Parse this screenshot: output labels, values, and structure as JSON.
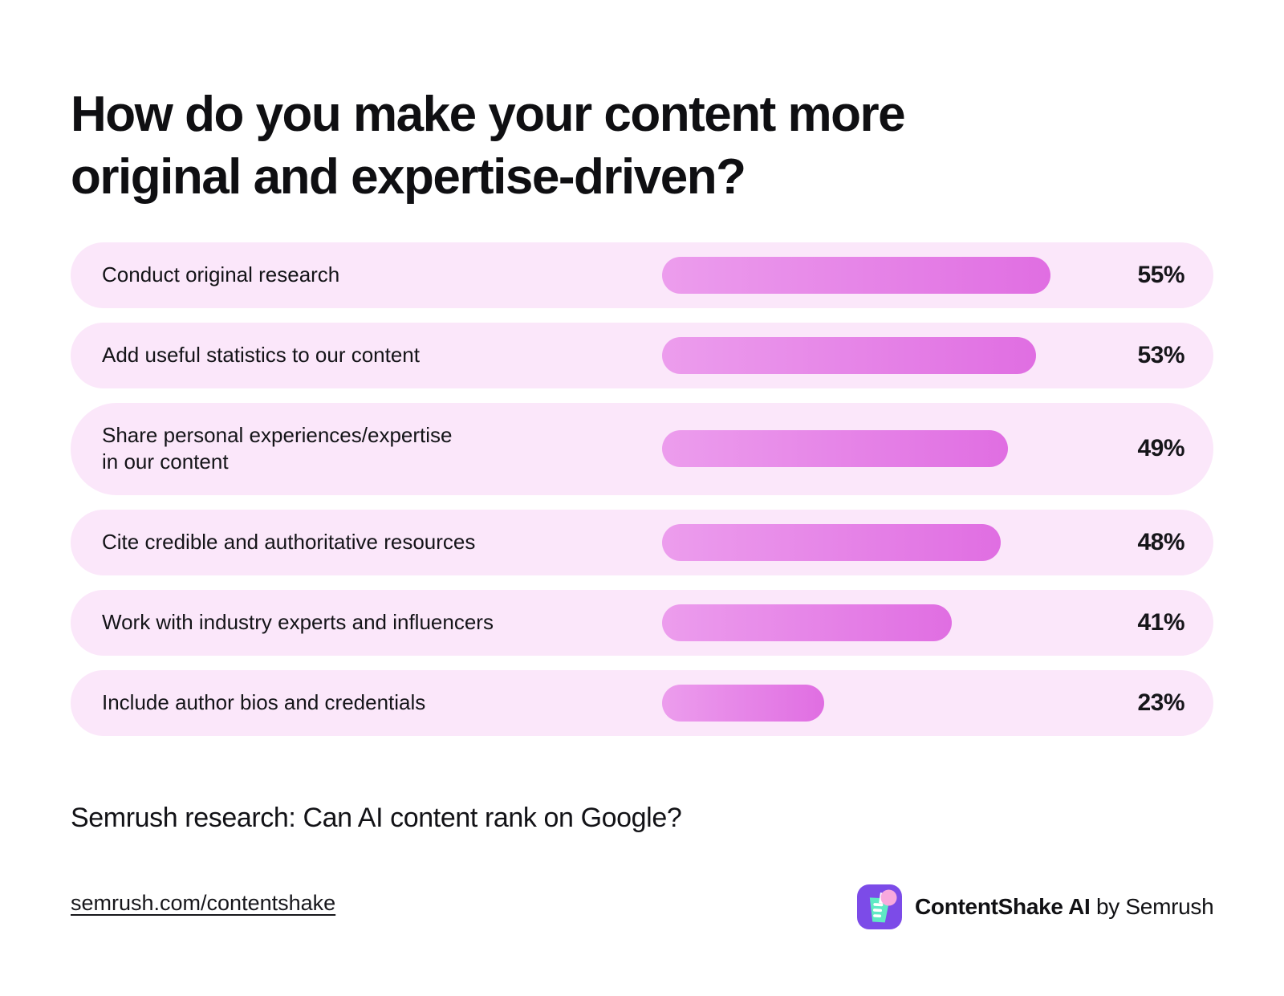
{
  "page": {
    "title": "How do you make your content more\noriginal and expertise-driven?",
    "source_note": "Semrush research: Can AI content rank on Google?",
    "footer": {
      "link": "semrush.com/contentshake",
      "brand_name": "ContentShake AI",
      "brand_suffix": " by Semrush"
    }
  },
  "chart_data": {
    "type": "bar",
    "orientation": "horizontal",
    "title": "How do you make your content more original and expertise-driven?",
    "unit": "%",
    "categories": [
      "Conduct original research",
      "Add useful statistics to our content",
      "Share personal experiences/expertise\nin our content",
      "Cite credible and authoritative resources",
      "Work with industry experts and influencers",
      "Include author bios and credentials"
    ],
    "values": [
      55,
      53,
      49,
      48,
      41,
      23
    ],
    "value_labels": [
      "55%",
      "53%",
      "49%",
      "48%",
      "41%",
      "23%"
    ],
    "xlim": [
      0,
      55
    ],
    "grid": false,
    "legend": false,
    "colors": {
      "bar_gradient_start": "#EC9DED",
      "bar_gradient_end": "#E06EE2",
      "row_background": "#FBE7FA",
      "text": "#141418",
      "brand_purple": "#7C4BE8",
      "brand_mint": "#5FE9C4",
      "brand_pink": "#F8A9DD"
    }
  }
}
